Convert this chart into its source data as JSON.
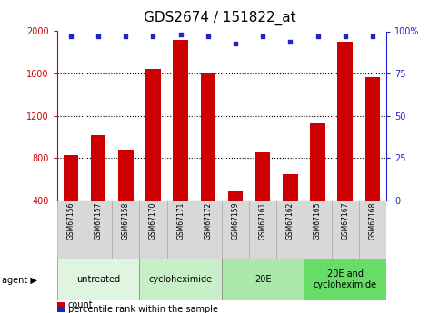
{
  "title": "GDS2674 / 151822_at",
  "categories": [
    "GSM67156",
    "GSM67157",
    "GSM67158",
    "GSM67170",
    "GSM67171",
    "GSM67172",
    "GSM67159",
    "GSM67161",
    "GSM67162",
    "GSM67165",
    "GSM67167",
    "GSM67168"
  ],
  "bar_values": [
    830,
    1020,
    880,
    1640,
    1920,
    1610,
    490,
    860,
    650,
    1130,
    1900,
    1570
  ],
  "dot_values": [
    97,
    97,
    97,
    97,
    98,
    97,
    93,
    97,
    94,
    97,
    97,
    97
  ],
  "bar_color": "#cc0000",
  "dot_color": "#2222cc",
  "bar_bottom": 400,
  "ylim_left": [
    400,
    2000
  ],
  "ylim_right": [
    0,
    100
  ],
  "yticks_left": [
    400,
    800,
    1200,
    1600,
    2000
  ],
  "ytick_labels_left": [
    "400",
    "800",
    "1200",
    "1600",
    "2000"
  ],
  "yticks_right": [
    0,
    25,
    50,
    75,
    100
  ],
  "ytick_labels_right": [
    "0",
    "25",
    "50",
    "75",
    "100%"
  ],
  "groups": [
    {
      "label": "untreated",
      "start": 0,
      "end": 3,
      "color": "#dff5df"
    },
    {
      "label": "cycloheximide",
      "start": 3,
      "end": 6,
      "color": "#c8efc8"
    },
    {
      "label": "20E",
      "start": 6,
      "end": 9,
      "color": "#aae8aa"
    },
    {
      "label": "20E and\ncycloheximide",
      "start": 9,
      "end": 12,
      "color": "#66dd66"
    }
  ],
  "agent_label": "agent",
  "legend_count_label": "count",
  "legend_pct_label": "percentile rank within the sample",
  "title_fontsize": 11,
  "tick_label_fontsize": 7,
  "cat_label_fontsize": 5.5,
  "group_label_fontsize": 7,
  "legend_fontsize": 7
}
